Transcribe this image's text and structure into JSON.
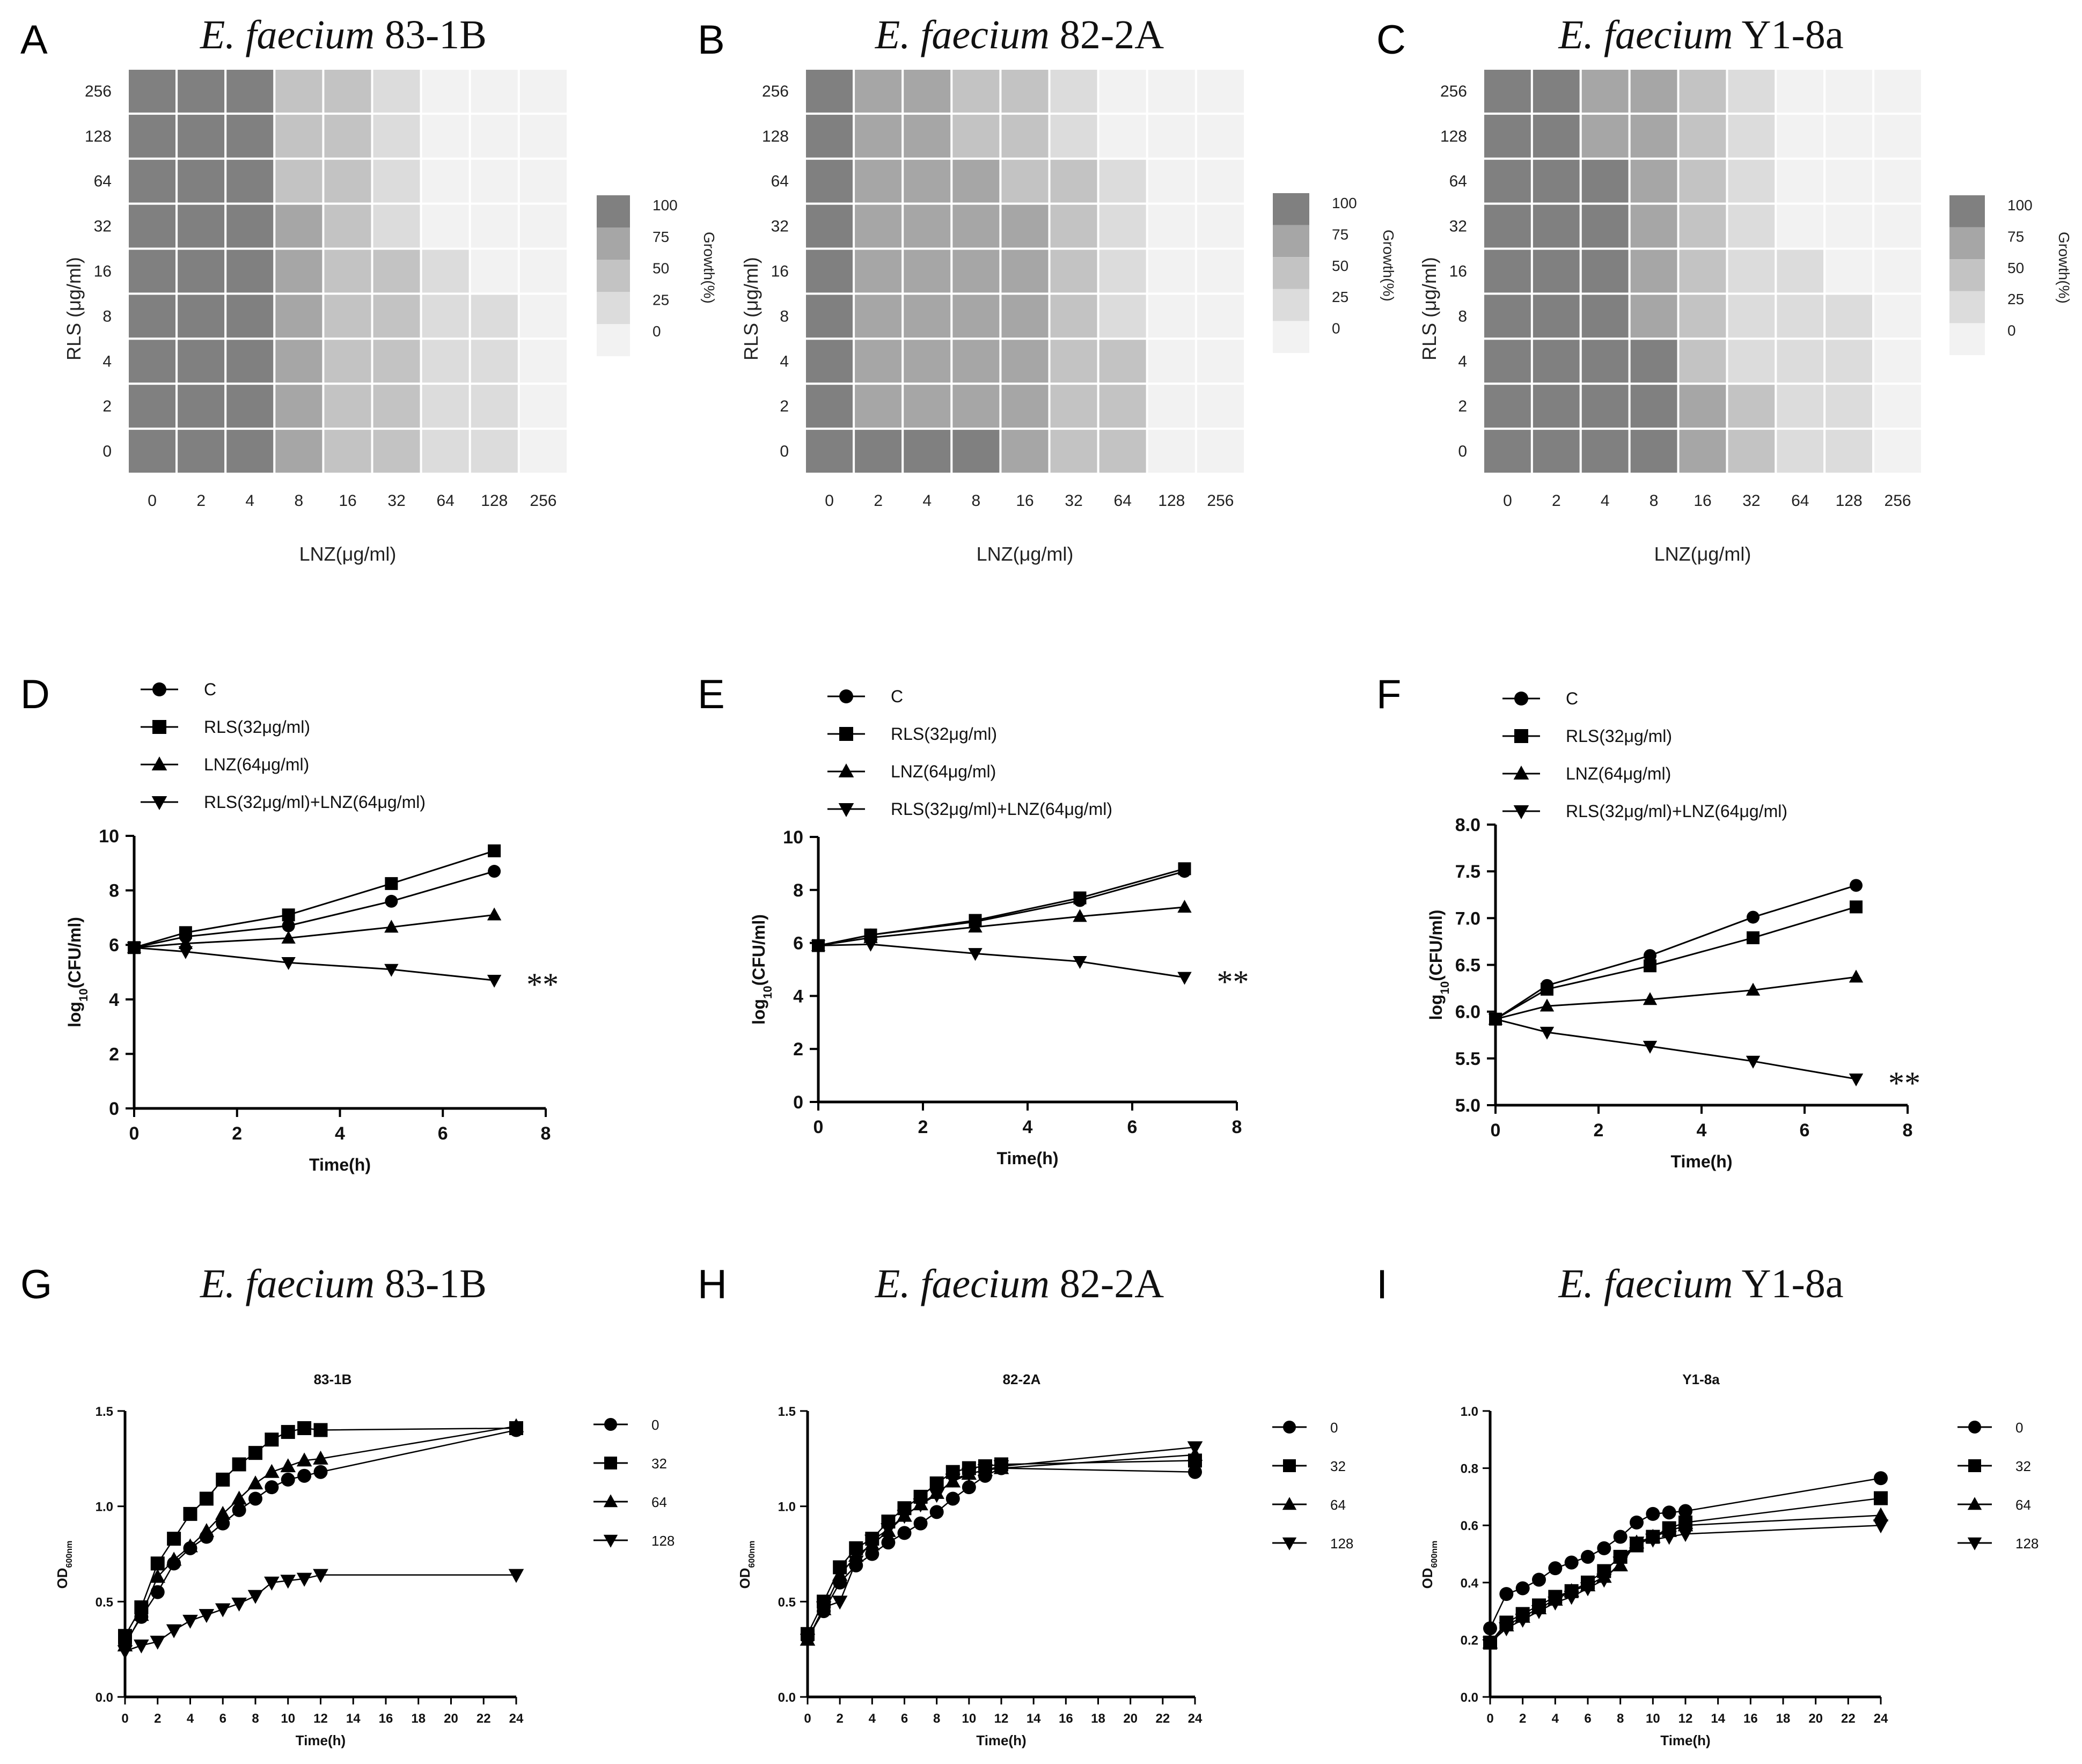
{
  "chart_data": [
    {
      "type": "heatmap",
      "panel": "A",
      "title_italic": "E. faecium",
      "title_rest": "83-1B",
      "xlabel": "LNZ(μg/ml)",
      "ylabel": "RLS (μg/ml)",
      "x_ticks": [
        "0",
        "2",
        "4",
        "8",
        "16",
        "32",
        "64",
        "128",
        "256"
      ],
      "y_ticks": [
        "256",
        "128",
        "64",
        "32",
        "16",
        "8",
        "4",
        "2",
        "0"
      ],
      "colorbar": {
        "ticks": [
          "100",
          "75",
          "50",
          "25",
          "0"
        ],
        "label": "Growth(%)"
      },
      "values": [
        [
          100,
          100,
          100,
          50,
          50,
          25,
          0,
          0,
          0
        ],
        [
          100,
          100,
          100,
          50,
          50,
          25,
          0,
          0,
          0
        ],
        [
          100,
          100,
          100,
          50,
          50,
          25,
          0,
          0,
          0
        ],
        [
          100,
          100,
          100,
          75,
          50,
          25,
          0,
          0,
          0
        ],
        [
          100,
          100,
          100,
          75,
          50,
          50,
          25,
          0,
          0
        ],
        [
          100,
          100,
          100,
          75,
          50,
          50,
          25,
          25,
          0
        ],
        [
          100,
          100,
          100,
          75,
          50,
          50,
          25,
          25,
          0
        ],
        [
          100,
          100,
          100,
          75,
          50,
          50,
          25,
          25,
          0
        ],
        [
          100,
          100,
          100,
          75,
          50,
          50,
          25,
          25,
          0
        ]
      ]
    },
    {
      "type": "heatmap",
      "panel": "B",
      "title_italic": "E. faecium",
      "title_rest": "82-2A",
      "xlabel": "LNZ(μg/ml)",
      "ylabel": "RLS (μg/ml)",
      "x_ticks": [
        "0",
        "2",
        "4",
        "8",
        "16",
        "32",
        "64",
        "128",
        "256"
      ],
      "y_ticks": [
        "256",
        "128",
        "64",
        "32",
        "16",
        "8",
        "4",
        "2",
        "0"
      ],
      "colorbar": {
        "ticks": [
          "100",
          "75",
          "50",
          "25",
          "0"
        ],
        "label": "Growth(%)"
      },
      "values": [
        [
          100,
          75,
          75,
          50,
          50,
          25,
          0,
          0,
          0
        ],
        [
          100,
          75,
          75,
          50,
          50,
          25,
          0,
          0,
          0
        ],
        [
          100,
          75,
          75,
          75,
          50,
          50,
          25,
          0,
          0
        ],
        [
          100,
          75,
          75,
          75,
          75,
          50,
          25,
          0,
          0
        ],
        [
          100,
          75,
          75,
          75,
          75,
          50,
          25,
          0,
          0
        ],
        [
          100,
          75,
          75,
          75,
          75,
          50,
          25,
          0,
          0
        ],
        [
          100,
          75,
          75,
          75,
          75,
          50,
          50,
          0,
          0
        ],
        [
          100,
          75,
          75,
          75,
          75,
          50,
          50,
          0,
          0
        ],
        [
          100,
          100,
          100,
          100,
          75,
          50,
          50,
          0,
          0
        ]
      ]
    },
    {
      "type": "heatmap",
      "panel": "C",
      "title_italic": "E. faecium",
      "title_rest": "Y1-8a",
      "xlabel": "LNZ(μg/ml)",
      "ylabel": "RLS (μg/ml)",
      "x_ticks": [
        "0",
        "2",
        "4",
        "8",
        "16",
        "32",
        "64",
        "128",
        "256"
      ],
      "y_ticks": [
        "256",
        "128",
        "64",
        "32",
        "16",
        "8",
        "4",
        "2",
        "0"
      ],
      "colorbar": {
        "ticks": [
          "100",
          "75",
          "50",
          "25",
          "0"
        ],
        "label": "Growth(%)"
      },
      "values": [
        [
          100,
          100,
          75,
          75,
          50,
          25,
          0,
          0,
          0
        ],
        [
          100,
          100,
          75,
          75,
          50,
          25,
          0,
          0,
          0
        ],
        [
          100,
          100,
          100,
          75,
          50,
          25,
          0,
          0,
          0
        ],
        [
          100,
          100,
          100,
          75,
          50,
          25,
          0,
          0,
          0
        ],
        [
          100,
          100,
          100,
          75,
          50,
          25,
          25,
          0,
          0
        ],
        [
          100,
          100,
          100,
          75,
          50,
          25,
          25,
          25,
          0
        ],
        [
          100,
          100,
          100,
          100,
          50,
          25,
          25,
          25,
          0
        ],
        [
          100,
          100,
          100,
          100,
          75,
          50,
          25,
          25,
          0
        ],
        [
          100,
          100,
          100,
          100,
          75,
          50,
          25,
          25,
          0
        ]
      ]
    },
    {
      "type": "line",
      "panel": "D",
      "xlabel": "Time(h)",
      "ylabel": "log10(CFU/ml)",
      "ylabel_base": "log",
      "ylabel_sub": "10",
      "ylabel_rest": "(CFU/ml)",
      "xlim": [
        0,
        8
      ],
      "ylim": [
        0,
        10
      ],
      "x_ticks": [
        "0",
        "2",
        "4",
        "6",
        "8"
      ],
      "y_ticks": [
        "0",
        "2",
        "4",
        "6",
        "8",
        "10"
      ],
      "annotation": "**",
      "x": [
        0,
        1,
        3,
        5,
        7
      ],
      "series": [
        {
          "name": "C",
          "marker": "circle",
          "values": [
            5.9,
            6.3,
            6.7,
            7.6,
            8.7
          ]
        },
        {
          "name": "RLS(32μg/ml)",
          "marker": "square",
          "values": [
            5.9,
            6.45,
            7.1,
            8.25,
            9.45
          ]
        },
        {
          "name": "LNZ(64μg/ml)",
          "marker": "triangle-up",
          "values": [
            5.9,
            6.05,
            6.25,
            6.65,
            7.1
          ]
        },
        {
          "name": "RLS(32μg/ml)+LNZ(64μg/ml)",
          "marker": "triangle-down",
          "values": [
            5.9,
            5.75,
            5.35,
            5.1,
            4.7
          ]
        }
      ]
    },
    {
      "type": "line",
      "panel": "E",
      "xlabel": "Time(h)",
      "ylabel": "log10(CFU/ml)",
      "ylabel_base": "log",
      "ylabel_sub": "10",
      "ylabel_rest": "(CFU/ml)",
      "xlim": [
        0,
        8
      ],
      "ylim": [
        0,
        10
      ],
      "x_ticks": [
        "0",
        "2",
        "4",
        "6",
        "8"
      ],
      "y_ticks": [
        "0",
        "2",
        "4",
        "6",
        "8",
        "10"
      ],
      "annotation": "**",
      "x": [
        0,
        1,
        3,
        5,
        7
      ],
      "series": [
        {
          "name": "C",
          "marker": "circle",
          "values": [
            5.9,
            6.3,
            6.8,
            7.6,
            8.7
          ]
        },
        {
          "name": "RLS(32μg/ml)",
          "marker": "square",
          "values": [
            5.9,
            6.3,
            6.85,
            7.7,
            8.8
          ]
        },
        {
          "name": "LNZ(64μg/ml)",
          "marker": "triangle-up",
          "values": [
            5.9,
            6.2,
            6.6,
            7.0,
            7.35
          ]
        },
        {
          "name": "RLS(32μg/ml)+LNZ(64μg/ml)",
          "marker": "triangle-down",
          "values": [
            5.9,
            5.95,
            5.6,
            5.3,
            4.7
          ]
        }
      ]
    },
    {
      "type": "line",
      "panel": "F",
      "xlabel": "Time(h)",
      "ylabel": "log10(CFU/ml)",
      "ylabel_base": "log",
      "ylabel_sub": "10",
      "ylabel_rest": "(CFU/ml)",
      "xlim": [
        0,
        8
      ],
      "ylim": [
        5.0,
        8.0
      ],
      "x_ticks": [
        "0",
        "2",
        "4",
        "6",
        "8"
      ],
      "y_ticks": [
        "5.0",
        "5.5",
        "6.0",
        "6.5",
        "7.0",
        "7.5",
        "8.0"
      ],
      "annotation": "**",
      "x": [
        0,
        1,
        3,
        5,
        7
      ],
      "series": [
        {
          "name": "C",
          "marker": "circle",
          "values": [
            5.92,
            6.28,
            6.6,
            7.01,
            7.35
          ]
        },
        {
          "name": "RLS(32μg/ml)",
          "marker": "square",
          "values": [
            5.92,
            6.24,
            6.49,
            6.79,
            7.12
          ]
        },
        {
          "name": "LNZ(64μg/ml)",
          "marker": "triangle-up",
          "values": [
            5.92,
            6.06,
            6.13,
            6.23,
            6.37
          ]
        },
        {
          "name": "RLS(32μg/ml)+LNZ(64μg/ml)",
          "marker": "triangle-down",
          "values": [
            5.92,
            5.78,
            5.63,
            5.47,
            5.28
          ]
        }
      ]
    },
    {
      "type": "line",
      "panel": "G",
      "title_italic": "E. faecium",
      "title_rest": "83-1B",
      "subtitle": "83-1B",
      "xlabel": "Time(h)",
      "ylabel": "OD600nm",
      "ylabel_base": "OD",
      "ylabel_sub": "600nm",
      "xlim": [
        0,
        24
      ],
      "ylim": [
        0,
        1.5
      ],
      "x_ticks": [
        "0",
        "2",
        "4",
        "6",
        "8",
        "10",
        "12",
        "14",
        "16",
        "18",
        "20",
        "22",
        "24"
      ],
      "y_ticks": [
        "0.0",
        "0.5",
        "1.0",
        "1.5"
      ],
      "x": [
        0,
        1,
        2,
        3,
        4,
        5,
        6,
        7,
        8,
        9,
        10,
        11,
        12,
        24
      ],
      "series": [
        {
          "name": "0",
          "marker": "circle",
          "values": [
            0.28,
            0.42,
            0.55,
            0.7,
            0.78,
            0.84,
            0.91,
            0.98,
            1.04,
            1.1,
            1.14,
            1.16,
            1.18,
            1.4
          ]
        },
        {
          "name": "32",
          "marker": "square",
          "values": [
            0.32,
            0.47,
            0.7,
            0.83,
            0.96,
            1.04,
            1.14,
            1.22,
            1.28,
            1.35,
            1.39,
            1.41,
            1.4,
            1.41
          ]
        },
        {
          "name": "64",
          "marker": "triangle-up",
          "values": [
            0.27,
            0.43,
            0.63,
            0.72,
            0.79,
            0.87,
            0.96,
            1.04,
            1.12,
            1.18,
            1.21,
            1.24,
            1.25,
            1.42
          ]
        },
        {
          "name": "128",
          "marker": "triangle-down",
          "values": [
            0.24,
            0.27,
            0.29,
            0.35,
            0.4,
            0.43,
            0.46,
            0.49,
            0.53,
            0.6,
            0.61,
            0.62,
            0.64,
            0.64
          ]
        }
      ]
    },
    {
      "type": "line",
      "panel": "H",
      "title_italic": "E. faecium",
      "title_rest": "82-2A",
      "subtitle": "82-2A",
      "xlabel": "Time(h)",
      "ylabel": "OD600nm",
      "ylabel_base": "OD",
      "ylabel_sub": "600nm",
      "xlim": [
        0,
        24
      ],
      "ylim": [
        0,
        1.5
      ],
      "x_ticks": [
        "0",
        "2",
        "4",
        "6",
        "8",
        "10",
        "12",
        "14",
        "16",
        "18",
        "20",
        "22",
        "24"
      ],
      "y_ticks": [
        "0.0",
        "0.5",
        "1.0",
        "1.5"
      ],
      "x": [
        0,
        1,
        2,
        3,
        4,
        5,
        6,
        7,
        8,
        9,
        10,
        11,
        12,
        24
      ],
      "series": [
        {
          "name": "0",
          "marker": "circle",
          "values": [
            0.31,
            0.45,
            0.6,
            0.69,
            0.75,
            0.81,
            0.86,
            0.91,
            0.97,
            1.04,
            1.1,
            1.16,
            1.2,
            1.18
          ]
        },
        {
          "name": "32",
          "marker": "square",
          "values": [
            0.33,
            0.5,
            0.68,
            0.78,
            0.83,
            0.92,
            0.99,
            1.05,
            1.12,
            1.18,
            1.2,
            1.21,
            1.22,
            1.24
          ]
        },
        {
          "name": "64",
          "marker": "triangle-up",
          "values": [
            0.3,
            0.46,
            0.64,
            0.74,
            0.8,
            0.87,
            0.95,
            1.01,
            1.07,
            1.13,
            1.17,
            1.19,
            1.2,
            1.27
          ]
        },
        {
          "name": "128",
          "marker": "triangle-down",
          "values": [
            0.3,
            0.47,
            0.5,
            0.71,
            0.82,
            0.88,
            0.95,
            1.01,
            1.06,
            1.14,
            1.17,
            1.19,
            1.21,
            1.31
          ]
        }
      ]
    },
    {
      "type": "line",
      "panel": "I",
      "title_italic": "E. faecium",
      "title_rest": "Y1-8a",
      "subtitle": "Y1-8a",
      "xlabel": "Time(h)",
      "ylabel": "OD600nm",
      "ylabel_base": "OD",
      "ylabel_sub": "600nm",
      "xlim": [
        0,
        24
      ],
      "ylim": [
        0,
        1.0
      ],
      "x_ticks": [
        "0",
        "2",
        "4",
        "6",
        "8",
        "10",
        "12",
        "14",
        "16",
        "18",
        "20",
        "22",
        "24"
      ],
      "y_ticks": [
        "0.0",
        "0.2",
        "0.4",
        "0.6",
        "0.8",
        "1.0"
      ],
      "x": [
        0,
        1,
        2,
        3,
        4,
        5,
        6,
        7,
        8,
        9,
        10,
        11,
        12,
        24
      ],
      "series": [
        {
          "name": "0",
          "marker": "circle",
          "values": [
            0.24,
            0.36,
            0.38,
            0.41,
            0.45,
            0.47,
            0.49,
            0.52,
            0.56,
            0.61,
            0.64,
            0.645,
            0.65,
            0.765
          ]
        },
        {
          "name": "32",
          "marker": "square",
          "values": [
            0.19,
            0.26,
            0.29,
            0.32,
            0.35,
            0.37,
            0.4,
            0.44,
            0.49,
            0.53,
            0.56,
            0.59,
            0.61,
            0.695
          ]
        },
        {
          "name": "64",
          "marker": "triangle-up",
          "values": [
            0.19,
            0.25,
            0.28,
            0.31,
            0.34,
            0.37,
            0.39,
            0.42,
            0.46,
            0.54,
            0.56,
            0.58,
            0.6,
            0.635
          ]
        },
        {
          "name": "128",
          "marker": "triangle-down",
          "values": [
            0.19,
            0.24,
            0.27,
            0.3,
            0.33,
            0.35,
            0.38,
            0.41,
            0.47,
            0.54,
            0.55,
            0.56,
            0.57,
            0.6
          ]
        }
      ]
    }
  ]
}
